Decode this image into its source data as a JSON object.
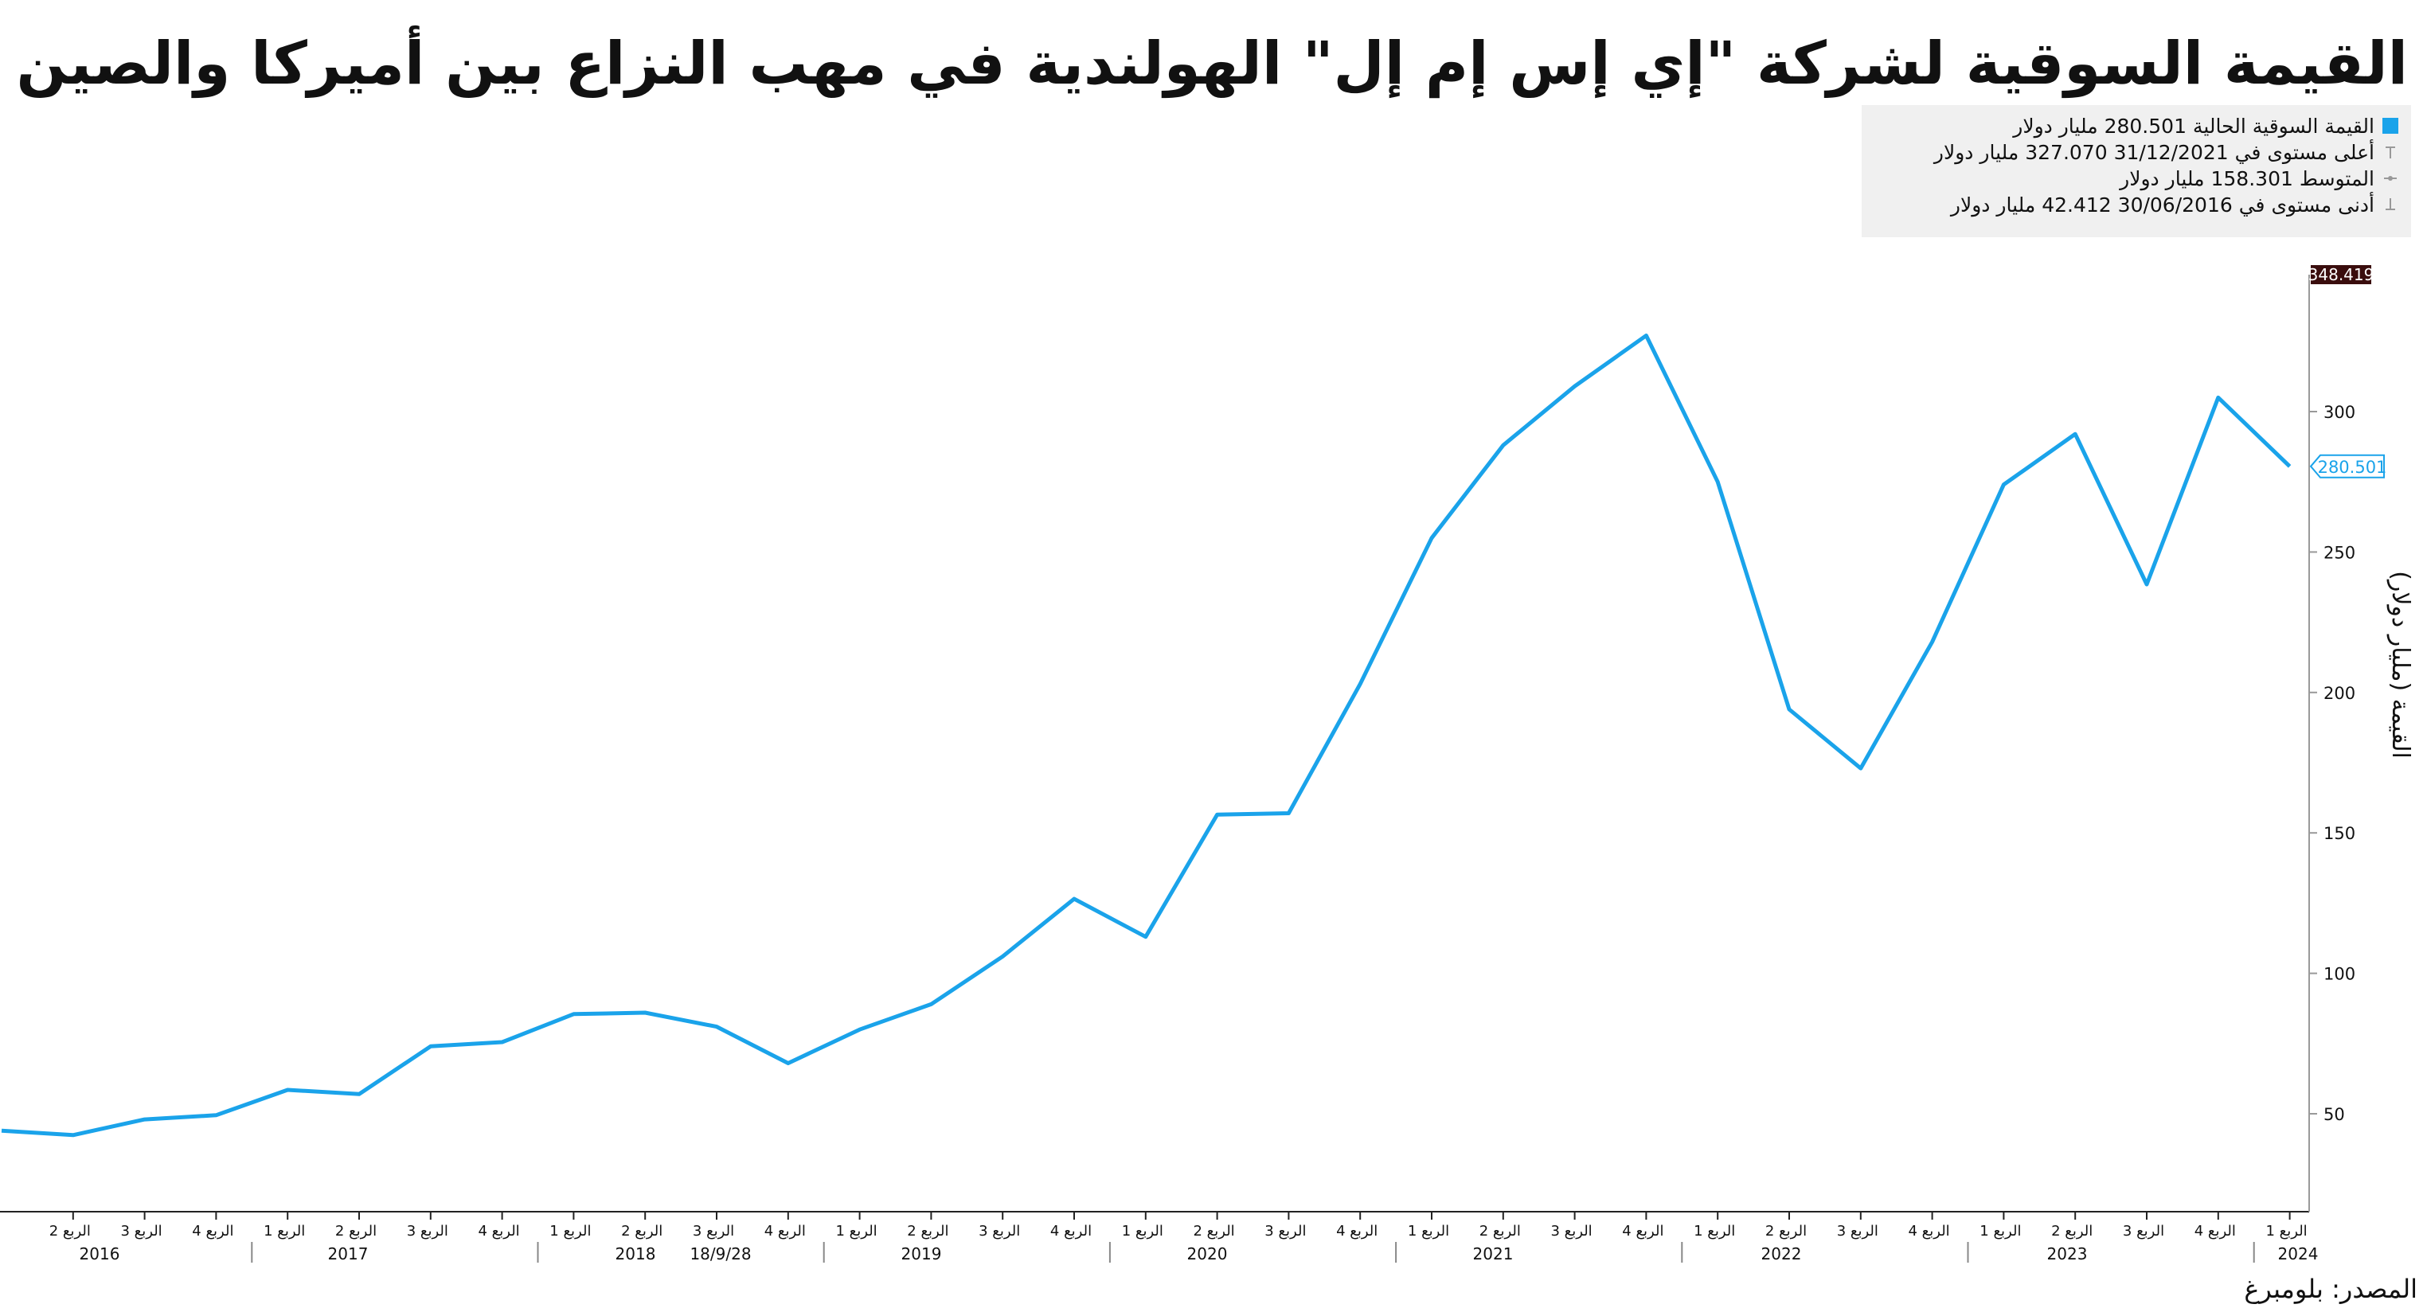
{
  "title": "القيمة السوقية لشركة \"إي إس إم إل\" الهولندية في مهب النزاع بين أميركا والصين",
  "source": "المصدر: بلومبرغ",
  "legend": [
    {
      "text": "القيمة السوقية الحالية 280.501 مليار دولار",
      "icon": "square-swatch-icon",
      "color": "#1aa3ea"
    },
    {
      "text": "أعلى مستوى في 31/12/2021   327.070 مليار دولار",
      "icon": "max-marker-icon",
      "color": "#999999"
    },
    {
      "text": "المتوسط 158.301 مليار دولار",
      "icon": "average-marker-icon",
      "color": "#999999"
    },
    {
      "text": "أدنى مستوى في 30/06/2016   42.412 مليار دولار",
      "icon": "min-marker-icon",
      "color": "#999999"
    }
  ],
  "chart_data": {
    "type": "line",
    "title": "القيمة السوقية لشركة \"إي إس إم إل\" الهولندية في مهب النزاع بين أميركا والصين",
    "ylabel": "القيمة (مليار دولار)",
    "xlabel": "",
    "ylim": [
      20,
      348.419
    ],
    "yticks": [
      50,
      100,
      150,
      200,
      250,
      300
    ],
    "ytick_labels": [
      "50",
      "100",
      "150",
      "200",
      "250",
      "300"
    ],
    "axis_position": "right",
    "grid": false,
    "line_color": "#1aa3ea",
    "x": [
      "الربع 1 2016",
      "الربع 2 2016",
      "الربع 3 2016",
      "الربع 4 2016",
      "الربع 1 2017",
      "الربع 2 2017",
      "الربع 3 2017",
      "الربع 4 2017",
      "الربع 1 2018",
      "الربع 2 2018",
      "الربع 3 2018",
      "الربع 4 2018",
      "الربع 1 2019",
      "الربع 2 2019",
      "الربع 3 2019",
      "الربع 4 2019",
      "الربع 1 2020",
      "الربع 2 2020",
      "الربع 3 2020",
      "الربع 4 2020",
      "الربع 1 2021",
      "الربع 2 2021",
      "الربع 3 2021",
      "الربع 4 2021",
      "الربع 1 2022",
      "الربع 2 2022",
      "الربع 3 2022",
      "الربع 4 2022",
      "الربع 1 2023",
      "الربع 2 2023",
      "الربع 3 2023",
      "الربع 4 2023",
      "الربع 1 2024"
    ],
    "tick_labels": [
      "الربع 2",
      "الربع 3",
      "الربع 4",
      "الربع 1",
      "الربع 2",
      "الربع 3",
      "الربع 4",
      "الربع 1",
      "الربع 2",
      "الربع 3",
      "الربع 4",
      "الربع 1",
      "الربع 2",
      "الربع 3",
      "الربع 4",
      "الربع 1",
      "الربع 2",
      "الربع 3",
      "الربع 4",
      "الربع 1",
      "الربع 2",
      "الربع 3",
      "الربع 4",
      "الربع 1",
      "الربع 2",
      "الربع 3",
      "الربع 4",
      "الربع 1",
      "الربع 2",
      "الربع 3",
      "الربع 4",
      "الربع 1"
    ],
    "year_labels": [
      "2016",
      "2017",
      "2018",
      "18/9/28",
      "2019",
      "2020",
      "2021",
      "2022",
      "2023",
      "2024"
    ],
    "values": [
      44.0,
      42.4,
      48.0,
      49.5,
      58.5,
      57.0,
      74.0,
      75.5,
      85.5,
      86.0,
      81.0,
      68.0,
      80.0,
      89.0,
      106.0,
      126.5,
      113.0,
      156.5,
      157.0,
      203.0,
      255.0,
      288.0,
      309.0,
      327.07,
      275.0,
      194.0,
      173.0,
      218.0,
      274.0,
      292.0,
      238.5,
      305.0,
      280.501
    ],
    "max_label": "348.419",
    "current_label": "280.501"
  }
}
